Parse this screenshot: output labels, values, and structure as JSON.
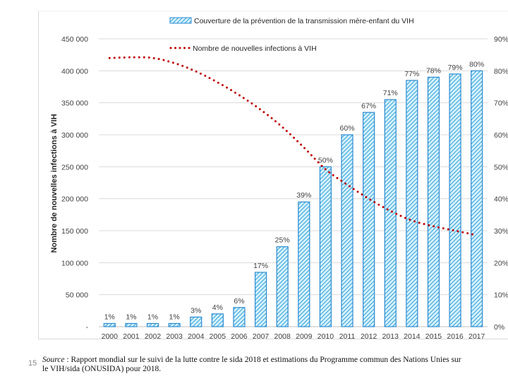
{
  "slide": {
    "number": "15",
    "caption_source_label": "Source",
    "caption_text": " : Rapport mondial sur le suivi de la lutte contre le sida 2018 et estimations du Programme commun des Nations Unies sur le VIH/sida (ONUSIDA) pour 2018."
  },
  "colors": {
    "bar_stroke": "#2e8bd0",
    "bar_hatch": "#3aa6dc",
    "bar_fill": "#d6f1fb",
    "line": "#c00000",
    "grid": "#d9d9d9"
  },
  "chart_data": {
    "type": "bar",
    "title": "",
    "categories": [
      "2000",
      "2001",
      "2002",
      "2003",
      "2004",
      "2005",
      "2006",
      "2007",
      "2008",
      "2009",
      "2010",
      "2011",
      "2012",
      "2013",
      "2014",
      "2015",
      "2016",
      "2017"
    ],
    "series": [
      {
        "name": "Couverture de la prévention de la transmission mère-enfant du VIH",
        "type": "bar",
        "axis": "right",
        "values": [
          1,
          1,
          1,
          1,
          3,
          4,
          6,
          17,
          25,
          39,
          50,
          60,
          67,
          71,
          77,
          78,
          79,
          80
        ],
        "data_labels": [
          "1%",
          "1%",
          "1%",
          "1%",
          "3%",
          "4%",
          "6%",
          "17%",
          "25%",
          "39%",
          "50%",
          "60%",
          "67%",
          "71%",
          "77%",
          "78%",
          "79%",
          "80%"
        ]
      },
      {
        "name": "Nombre de nouvelles infections à VIH",
        "type": "line",
        "style": "dotted",
        "axis": "left",
        "values": [
          420000,
          421000,
          420000,
          412000,
          399000,
          382000,
          362000,
          339000,
          312000,
          280000,
          246000,
          222000,
          200000,
          181000,
          166000,
          157000,
          150000,
          143000
        ]
      }
    ],
    "ylabel": "Nombre de nouvelles infections à VIH",
    "xlabel": "",
    "ylim": [
      0,
      450000
    ],
    "y2lim": [
      0,
      90
    ],
    "yticks": [
      "-",
      "50 000",
      "100 000",
      "150 000",
      "200 000",
      "250 000",
      "300 000",
      "350 000",
      "400 000",
      "450 000"
    ],
    "y2ticks": [
      "0%",
      "10%",
      "20%",
      "30%",
      "40%",
      "50%",
      "60%",
      "70%",
      "80%",
      "90%"
    ],
    "grid": true,
    "legend_position": "top-center"
  }
}
